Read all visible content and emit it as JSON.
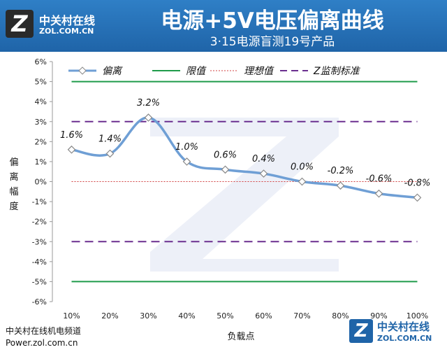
{
  "header": {
    "logo_text": "中关村在线",
    "logo_domain": "ZOL.COM.CN",
    "title": "电源+5V电压偏离曲线",
    "subtitle": "3·15电源盲测19号产品"
  },
  "footer": {
    "line1": "中关村在线机电频道",
    "line2": "Power.zol.com.cn",
    "watermark_cn": "中关村在线",
    "watermark_en": "ZOL.COM.CN"
  },
  "colors": {
    "header_bg": "#2266b0",
    "series": "#6f9fd5",
    "limit": "#1f9b4a",
    "ideal": "#d24040",
    "zstd": "#6b2f8f"
  },
  "chart_data": {
    "type": "line",
    "title": "电源+5V电压偏离曲线",
    "xlabel": "负载点",
    "ylabel": "偏离幅度",
    "categories": [
      "10%",
      "20%",
      "30%",
      "40%",
      "50%",
      "60%",
      "70%",
      "80%",
      "90%",
      "100%"
    ],
    "y_ticks": [
      "6%",
      "5%",
      "4%",
      "3%",
      "2%",
      "1%",
      "0%",
      "-1%",
      "-2%",
      "-3%",
      "-4%",
      "-5%",
      "-6%"
    ],
    "ylim": [
      -6,
      6
    ],
    "series": [
      {
        "name": "偏离",
        "values": [
          1.6,
          1.4,
          3.2,
          1.0,
          0.6,
          0.4,
          0.0,
          -0.2,
          -0.6,
          -0.8
        ],
        "labels": [
          "1.6%",
          "1.4%",
          "3.2%",
          "1.0%",
          "0.6%",
          "0.4%",
          "0.0%",
          "-0.2%",
          "-0.6%",
          "-0.8%"
        ]
      }
    ],
    "reference_lines": [
      {
        "name": "限值",
        "values": [
          5,
          -5
        ],
        "style": "solid"
      },
      {
        "name": "理想值",
        "values": [
          0
        ],
        "style": "dotted"
      },
      {
        "name": "Z监制标准",
        "values": [
          3,
          -3
        ],
        "style": "dashed"
      }
    ],
    "legend": [
      "偏离",
      "限值",
      "理想值",
      "Z监制标准"
    ],
    "legend_position": "top"
  }
}
